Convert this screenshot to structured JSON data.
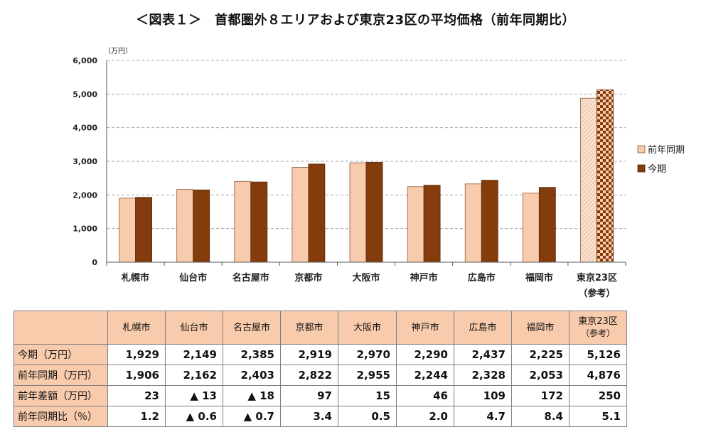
{
  "title": "＜図表１＞　首都圏外８エリアおよび東京23区の平均価格（前年同期比）",
  "colors": {
    "prev": "#f8cbad",
    "curr": "#843c0c",
    "table_header_bg": "#f8cbad",
    "grid": "#a6a6a6"
  },
  "chart_data": {
    "type": "bar",
    "unit_label": "（万円）",
    "categories": [
      "札幌市",
      "仙台市",
      "名古屋市",
      "京都市",
      "大阪市",
      "神戸市",
      "広島市",
      "福岡市",
      "東京23区"
    ],
    "category_notes": [
      "",
      "",
      "",
      "",
      "",
      "",
      "",
      "",
      "（参考）"
    ],
    "series": [
      {
        "name": "前年同期",
        "values": [
          1906,
          2162,
          2403,
          2822,
          2955,
          2244,
          2328,
          2053,
          4876
        ]
      },
      {
        "name": "今期",
        "values": [
          1929,
          2149,
          2385,
          2919,
          2970,
          2290,
          2437,
          2225,
          5126
        ]
      }
    ],
    "ylim": [
      0,
      6000
    ],
    "yticks": [
      "0",
      "1,000",
      "2,000",
      "3,000",
      "4,000",
      "5,000",
      "6,000"
    ],
    "grid": true,
    "legend_position": "right",
    "highlight_last_category": "patterned"
  },
  "table": {
    "header": [
      "札幌市",
      "仙台市",
      "名古屋市",
      "京都市",
      "大阪市",
      "神戸市",
      "広島市",
      "福岡市",
      "東京23区"
    ],
    "header_sub": [
      "",
      "",
      "",
      "",
      "",
      "",
      "",
      "",
      "（参考）"
    ],
    "rows": [
      {
        "label": "今期（万円）",
        "cells": [
          "1,929",
          "2,149",
          "2,385",
          "2,919",
          "2,970",
          "2,290",
          "2,437",
          "2,225",
          "5,126"
        ]
      },
      {
        "label": "前年同期（万円）",
        "cells": [
          "1,906",
          "2,162",
          "2,403",
          "2,822",
          "2,955",
          "2,244",
          "2,328",
          "2,053",
          "4,876"
        ]
      },
      {
        "label": "前年差額（万円）",
        "cells": [
          "23",
          "▲ 13",
          "▲ 18",
          "97",
          "15",
          "46",
          "109",
          "172",
          "250"
        ]
      },
      {
        "label": "前年同期比（％）",
        "cells": [
          "1.2",
          "▲ 0.6",
          "▲ 0.7",
          "3.4",
          "0.5",
          "2.0",
          "4.7",
          "8.4",
          "5.1"
        ]
      }
    ]
  }
}
